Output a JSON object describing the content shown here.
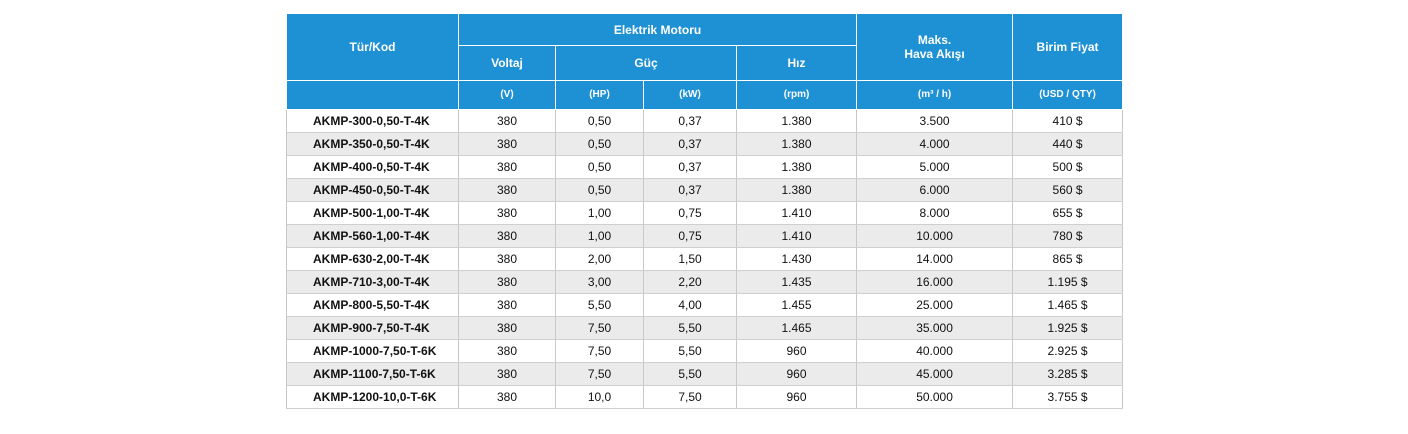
{
  "headers": {
    "code": "Tür/Kod",
    "motor": "Elektrik Motoru",
    "voltage": "Voltaj",
    "power": "Güç",
    "speed": "Hız",
    "airflow": "Maks.\nHava Akışı",
    "price": "Birim Fiyat"
  },
  "units": {
    "voltage": "(V)",
    "hp": "(HP)",
    "kw": "(kW)",
    "rpm": "(rpm)",
    "airflow": "(m³ / h)",
    "price": "(USD / QTY)"
  },
  "rows": [
    [
      "AKMP-300-0,50-T-4K",
      "380",
      "0,50",
      "0,37",
      "1.380",
      "3.500",
      "410 $"
    ],
    [
      "AKMP-350-0,50-T-4K",
      "380",
      "0,50",
      "0,37",
      "1.380",
      "4.000",
      "440 $"
    ],
    [
      "AKMP-400-0,50-T-4K",
      "380",
      "0,50",
      "0,37",
      "1.380",
      "5.000",
      "500 $"
    ],
    [
      "AKMP-450-0,50-T-4K",
      "380",
      "0,50",
      "0,37",
      "1.380",
      "6.000",
      "560 $"
    ],
    [
      "AKMP-500-1,00-T-4K",
      "380",
      "1,00",
      "0,75",
      "1.410",
      "8.000",
      "655 $"
    ],
    [
      "AKMP-560-1,00-T-4K",
      "380",
      "1,00",
      "0,75",
      "1.410",
      "10.000",
      "780 $"
    ],
    [
      "AKMP-630-2,00-T-4K",
      "380",
      "2,00",
      "1,50",
      "1.430",
      "14.000",
      "865 $"
    ],
    [
      "AKMP-710-3,00-T-4K",
      "380",
      "3,00",
      "2,20",
      "1.435",
      "16.000",
      "1.195 $"
    ],
    [
      "AKMP-800-5,50-T-4K",
      "380",
      "5,50",
      "4,00",
      "1.455",
      "25.000",
      "1.465 $"
    ],
    [
      "AKMP-900-7,50-T-4K",
      "380",
      "7,50",
      "5,50",
      "1.465",
      "35.000",
      "1.925 $"
    ],
    [
      "AKMP-1000-7,50-T-6K",
      "380",
      "7,50",
      "5,50",
      "960",
      "40.000",
      "2.925 $"
    ],
    [
      "AKMP-1100-7,50-T-6K",
      "380",
      "7,50",
      "5,50",
      "960",
      "45.000",
      "3.285 $"
    ],
    [
      "AKMP-1200-10,0-T-6K",
      "380",
      "10,0",
      "7,50",
      "960",
      "50.000",
      "3.755 $"
    ]
  ]
}
